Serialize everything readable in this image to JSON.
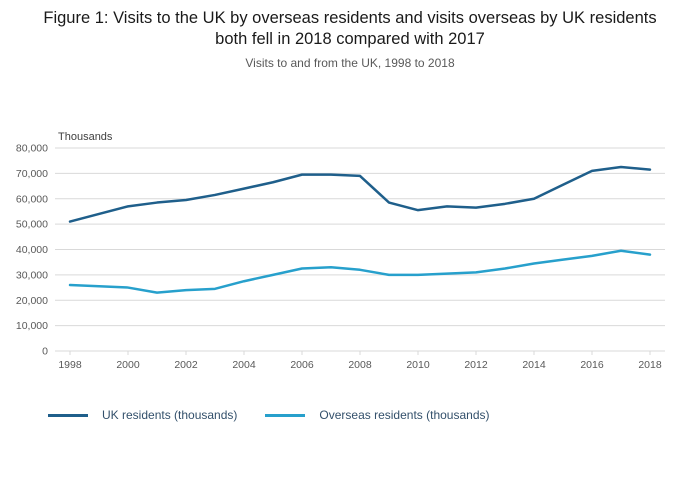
{
  "chart_data": {
    "type": "line",
    "title": "Figure 1: Visits to the UK by overseas residents and visits overseas by UK residents both fell in 2018 compared with 2017",
    "subtitle": "Visits to and from the UK, 1998 to 2018",
    "unit_label": "Thousands",
    "x": [
      1998,
      1999,
      2000,
      2001,
      2002,
      2003,
      2004,
      2005,
      2006,
      2007,
      2008,
      2009,
      2010,
      2011,
      2012,
      2013,
      2014,
      2015,
      2016,
      2017,
      2018
    ],
    "x_tick_values": [
      1998,
      2000,
      2002,
      2004,
      2006,
      2008,
      2010,
      2012,
      2014,
      2016,
      2018
    ],
    "x_tick_labels": [
      "1998",
      "2000",
      "2002",
      "2004",
      "2006",
      "2008",
      "2010",
      "2012",
      "2014",
      "2016",
      "2018"
    ],
    "ylim": [
      0,
      80000
    ],
    "y_tick_values": [
      0,
      10000,
      20000,
      30000,
      40000,
      50000,
      60000,
      70000,
      80000
    ],
    "y_tick_labels": [
      "0",
      "10,000",
      "20,000",
      "30,000",
      "40,000",
      "50,000",
      "60,000",
      "70,000",
      "80,000"
    ],
    "grid": true,
    "legend_position": "bottom-left",
    "colors": {
      "grid": "#d9d9d9",
      "axis_text": "#595959",
      "unit_text": "#404040",
      "legend_text": "#33506b"
    },
    "series": [
      {
        "name": "UK residents (thousands)",
        "color": "#1f5f8b",
        "values": [
          51000,
          54000,
          57000,
          58500,
          59500,
          61500,
          64000,
          66500,
          69500,
          69500,
          69000,
          58500,
          55500,
          57000,
          56500,
          58000,
          60000,
          65500,
          71000,
          72500,
          71500
        ]
      },
      {
        "name": "Overseas residents (thousands)",
        "color": "#27a0cc",
        "values": [
          26000,
          25500,
          25000,
          23000,
          24000,
          24500,
          27500,
          30000,
          32500,
          33000,
          32000,
          30000,
          30000,
          30500,
          31000,
          32500,
          34500,
          36000,
          37500,
          39500,
          38000
        ]
      }
    ]
  }
}
